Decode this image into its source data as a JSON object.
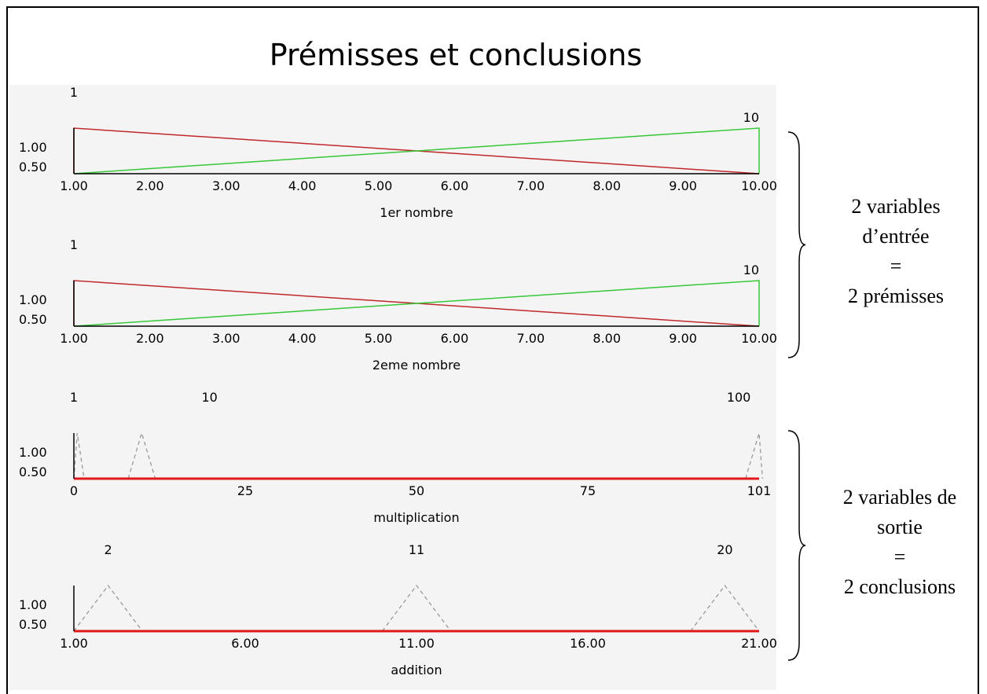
{
  "title": "Prémisses et conclusions",
  "y_ticks": [
    "1.00",
    "0.50"
  ],
  "colors": {
    "red": "#c0282c",
    "green": "#36c836",
    "dashed": "#999999",
    "axis": "#000000",
    "base": "#e01818"
  },
  "plots": [
    {
      "label": "1er nombre",
      "x_ticks": [
        "1.00",
        "2.00",
        "3.00",
        "4.00",
        "5.00",
        "6.00",
        "7.00",
        "8.00",
        "9.00",
        "10.00"
      ],
      "xlim": [
        1,
        10
      ],
      "term_labels": [
        {
          "text": "1",
          "at": 1
        },
        {
          "text": "10",
          "at": 10
        }
      ],
      "sets": [
        {
          "style": "red",
          "points": [
            [
              1,
              0
            ],
            [
              1,
              1
            ],
            [
              10,
              0
            ]
          ]
        },
        {
          "style": "green",
          "points": [
            [
              1,
              0
            ],
            [
              10,
              1
            ],
            [
              10,
              0
            ]
          ]
        }
      ]
    },
    {
      "label": "2eme nombre",
      "x_ticks": [
        "1.00",
        "2.00",
        "3.00",
        "4.00",
        "5.00",
        "6.00",
        "7.00",
        "8.00",
        "9.00",
        "10.00"
      ],
      "xlim": [
        1,
        10
      ],
      "term_labels": [
        {
          "text": "1",
          "at": 1
        },
        {
          "text": "10",
          "at": 10
        }
      ],
      "sets": [
        {
          "style": "red",
          "points": [
            [
              1,
              0
            ],
            [
              1,
              1
            ],
            [
              10,
              0
            ]
          ]
        },
        {
          "style": "green",
          "points": [
            [
              1,
              0
            ],
            [
              10,
              1
            ],
            [
              10,
              0
            ]
          ]
        }
      ]
    },
    {
      "label": "multiplication",
      "x_ticks": [
        "0",
        "25",
        "50",
        "75",
        "101"
      ],
      "xlim": [
        0,
        101
      ],
      "term_labels": [
        {
          "text": "1",
          "at": 0
        },
        {
          "text": "10",
          "at": 20
        },
        {
          "text": "100",
          "at": 98
        }
      ],
      "sets": [
        {
          "style": "dashed",
          "points": [
            [
              0,
              0
            ],
            [
              0.5,
              1
            ],
            [
              1.5,
              0
            ]
          ]
        },
        {
          "style": "dashed",
          "points": [
            [
              8,
              0
            ],
            [
              10,
              1
            ],
            [
              12,
              0
            ]
          ]
        },
        {
          "style": "dashed",
          "points": [
            [
              99,
              0
            ],
            [
              101,
              1
            ],
            [
              101.5,
              0
            ]
          ]
        }
      ]
    },
    {
      "label": "addition",
      "x_ticks": [
        "1.00",
        "6.00",
        "11.00",
        "16.00",
        "21.00"
      ],
      "xlim": [
        1,
        21
      ],
      "term_labels": [
        {
          "text": "2",
          "at": 2
        },
        {
          "text": "11",
          "at": 11
        },
        {
          "text": "20",
          "at": 20
        }
      ],
      "sets": [
        {
          "style": "dashed",
          "points": [
            [
              1,
              0
            ],
            [
              2,
              1
            ],
            [
              3,
              0
            ]
          ]
        },
        {
          "style": "dashed",
          "points": [
            [
              10,
              0
            ],
            [
              11,
              1
            ],
            [
              12,
              0
            ]
          ]
        },
        {
          "style": "dashed",
          "points": [
            [
              19,
              0
            ],
            [
              20,
              1
            ],
            [
              21,
              0
            ]
          ]
        }
      ]
    }
  ],
  "annotations": [
    {
      "lines": [
        "2 variables",
        "d’entrée",
        "=",
        "2 prémisses"
      ]
    },
    {
      "lines": [
        "2 variables de",
        "sortie",
        "=",
        "2 conclusions"
      ]
    }
  ]
}
